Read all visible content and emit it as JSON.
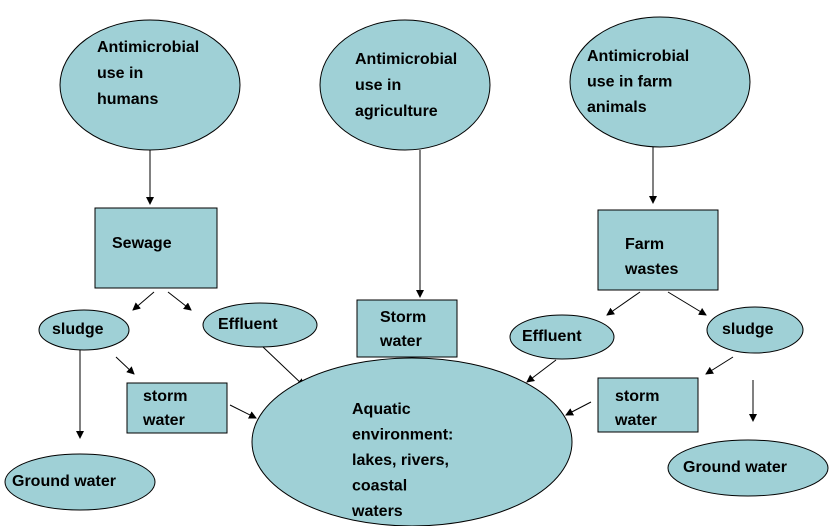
{
  "nodes": [
    {
      "lines": [
        "Antimicrobial",
        "use in",
        "humans"
      ]
    },
    {
      "lines": [
        "Antimicrobial",
        "use in",
        "agriculture"
      ]
    },
    {
      "lines": [
        "Antimicrobial",
        "use in farm",
        "animals"
      ]
    },
    {
      "lines": [
        "Sewage"
      ]
    },
    {
      "lines": [
        "Farm",
        "wastes"
      ]
    },
    {
      "lines": [
        "sludge"
      ]
    },
    {
      "lines": [
        "Effluent"
      ]
    },
    {
      "lines": [
        "Storm",
        "water"
      ]
    },
    {
      "lines": [
        "Effluent"
      ]
    },
    {
      "lines": [
        "sludge"
      ]
    },
    {
      "lines": [
        "storm",
        "water"
      ]
    },
    {
      "lines": [
        "storm",
        "water"
      ]
    },
    {
      "lines": [
        "Aquatic",
        "environment:",
        "lakes, rivers,",
        "coastal",
        "waters"
      ]
    },
    {
      "lines": [
        "Ground water"
      ]
    },
    {
      "lines": [
        "Ground water"
      ]
    }
  ]
}
